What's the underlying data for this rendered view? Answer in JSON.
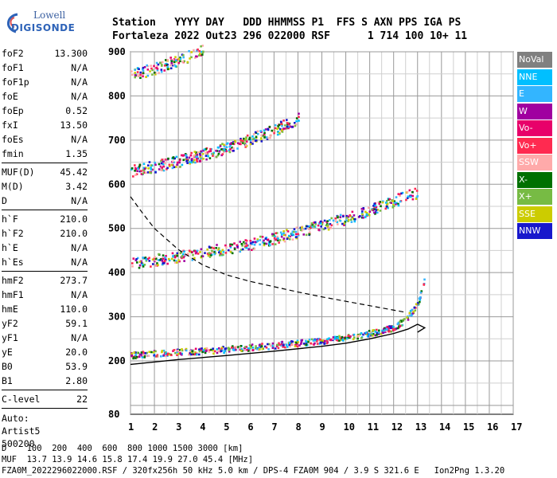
{
  "logo": {
    "line1": "Lowell",
    "line2": "DIGISONDE"
  },
  "header": {
    "row1": "Station   YYYY DAY   DDD HHMMSS P1  FFS S AXN PPS IGA PS",
    "row2": "Fortaleza 2022 Out23 296 022000 RSF      1 714 100 10+ 11"
  },
  "params_group1": [
    {
      "label": "foF2",
      "value": "13.300"
    },
    {
      "label": "foF1",
      "value": "N/A"
    },
    {
      "label": "foF1p",
      "value": "N/A"
    },
    {
      "label": "foE",
      "value": "N/A"
    },
    {
      "label": "foEp",
      "value": "0.52"
    },
    {
      "label": "fxI",
      "value": "13.50"
    },
    {
      "label": "foEs",
      "value": "N/A"
    },
    {
      "label": "fmin",
      "value": "1.35"
    }
  ],
  "params_group2": [
    {
      "label": "MUF(D)",
      "value": "45.42"
    },
    {
      "label": "M(D)",
      "value": "3.42"
    },
    {
      "label": "D",
      "value": "N/A"
    }
  ],
  "params_group3": [
    {
      "label": "h`F",
      "value": "210.0"
    },
    {
      "label": "h`F2",
      "value": "210.0"
    },
    {
      "label": "h`E",
      "value": "N/A"
    },
    {
      "label": "h`Es",
      "value": "N/A"
    }
  ],
  "params_group4": [
    {
      "label": "hmF2",
      "value": "273.7"
    },
    {
      "label": "hmF1",
      "value": "N/A"
    },
    {
      "label": "hmE",
      "value": "110.0"
    },
    {
      "label": "yF2",
      "value": "59.1"
    },
    {
      "label": "yF1",
      "value": "N/A"
    },
    {
      "label": "yE",
      "value": "20.0"
    },
    {
      "label": "B0",
      "value": "53.9"
    },
    {
      "label": "B1",
      "value": "2.80"
    }
  ],
  "params_group5": [
    {
      "label": "C-level",
      "value": "22"
    }
  ],
  "auto": {
    "line1": "Auto:",
    "line2": "Artist5",
    "line3": "500200"
  },
  "legend": [
    {
      "label": "NoVal",
      "color": "#808080"
    },
    {
      "label": "NNE",
      "color": "#00bfff"
    },
    {
      "label": "E",
      "color": "#33b5ff"
    },
    {
      "label": "W",
      "color": "#a000a0"
    },
    {
      "label": "Vo-",
      "color": "#e8006a"
    },
    {
      "label": "Vo+",
      "color": "#ff2a50"
    },
    {
      "label": "SSW",
      "color": "#ffaaaa"
    },
    {
      "label": "X-",
      "color": "#007000"
    },
    {
      "label": "X+",
      "color": "#77bb44"
    },
    {
      "label": "SSE",
      "color": "#cccc00"
    },
    {
      "label": "NNW",
      "color": "#1818cc"
    }
  ],
  "chart_data": {
    "type": "scatter",
    "xlim": [
      1,
      17
    ],
    "ylim": [
      80,
      900
    ],
    "x_ticks": [
      "1",
      "2",
      "3",
      "4",
      "5",
      "6",
      "7",
      "8",
      "9",
      "10",
      "11",
      "12",
      "13",
      "14",
      "15",
      "16",
      "17"
    ],
    "y_ticks": [
      "80",
      "200",
      "300",
      "400",
      "500",
      "600",
      "700",
      "800",
      "900"
    ],
    "grid": true,
    "series": [
      {
        "values": [
          [
            1.0,
            212
          ],
          [
            2.0,
            216
          ],
          [
            3.0,
            220
          ],
          [
            4.0,
            222
          ],
          [
            5.0,
            226
          ],
          [
            6.0,
            230
          ],
          [
            7.0,
            235
          ],
          [
            8.0,
            240
          ],
          [
            9.0,
            245
          ],
          [
            10.0,
            252
          ],
          [
            11.0,
            262
          ],
          [
            12.0,
            275
          ],
          [
            12.5,
            295
          ],
          [
            13.0,
            330
          ],
          [
            13.3,
            395
          ]
        ]
      },
      {
        "values": [
          [
            1.0,
            418
          ],
          [
            2.0,
            426
          ],
          [
            3.0,
            435
          ],
          [
            4.0,
            443
          ],
          [
            5.0,
            452
          ],
          [
            6.0,
            462
          ],
          [
            7.0,
            475
          ],
          [
            8.0,
            490
          ],
          [
            9.0,
            505
          ],
          [
            10.0,
            520
          ],
          [
            11.0,
            540
          ],
          [
            12.0,
            560
          ],
          [
            13.0,
            580
          ]
        ]
      },
      {
        "values": [
          [
            1.0,
            628
          ],
          [
            2.0,
            638
          ],
          [
            3.0,
            650
          ],
          [
            4.0,
            665
          ],
          [
            5.0,
            680
          ],
          [
            6.0,
            700
          ],
          [
            7.0,
            720
          ],
          [
            8.0,
            748
          ]
        ]
      },
      {
        "values": [
          [
            1.0,
            845
          ],
          [
            2.0,
            860
          ],
          [
            3.0,
            880
          ],
          [
            4.0,
            900
          ]
        ]
      }
    ],
    "profile_curve": [
      [
        1.0,
        192
      ],
      [
        3.0,
        203
      ],
      [
        5.0,
        212
      ],
      [
        7.0,
        222
      ],
      [
        9.0,
        233
      ],
      [
        10.0,
        240
      ],
      [
        11.0,
        250
      ],
      [
        12.0,
        262
      ],
      [
        12.6,
        272
      ],
      [
        13.0,
        283
      ],
      [
        13.3,
        275
      ],
      [
        13.0,
        265
      ]
    ],
    "dashed_curve": [
      [
        1.0,
        572
      ],
      [
        1.5,
        535
      ],
      [
        2.0,
        500
      ],
      [
        3.0,
        452
      ],
      [
        4.0,
        418
      ],
      [
        5.0,
        395
      ],
      [
        6.0,
        380
      ],
      [
        7.0,
        368
      ],
      [
        8.0,
        356
      ],
      [
        9.0,
        345
      ],
      [
        10.0,
        335
      ],
      [
        11.0,
        325
      ],
      [
        12.0,
        315
      ],
      [
        12.5,
        310
      ]
    ]
  },
  "bottom": {
    "line1": "D    100  200  400  600  800 1000 1500 3000 [km]",
    "line2": "MUF  13.7 13.9 14.6 15.8 17.4 19.9 27.0 45.4 [MHz]",
    "line3": "FZA0M_2022296022000.RSF / 320fx256h 50 kHz 5.0 km / DPS-4 FZA0M 904 / 3.9 S 321.6 E   Ion2Png 1.3.20"
  }
}
